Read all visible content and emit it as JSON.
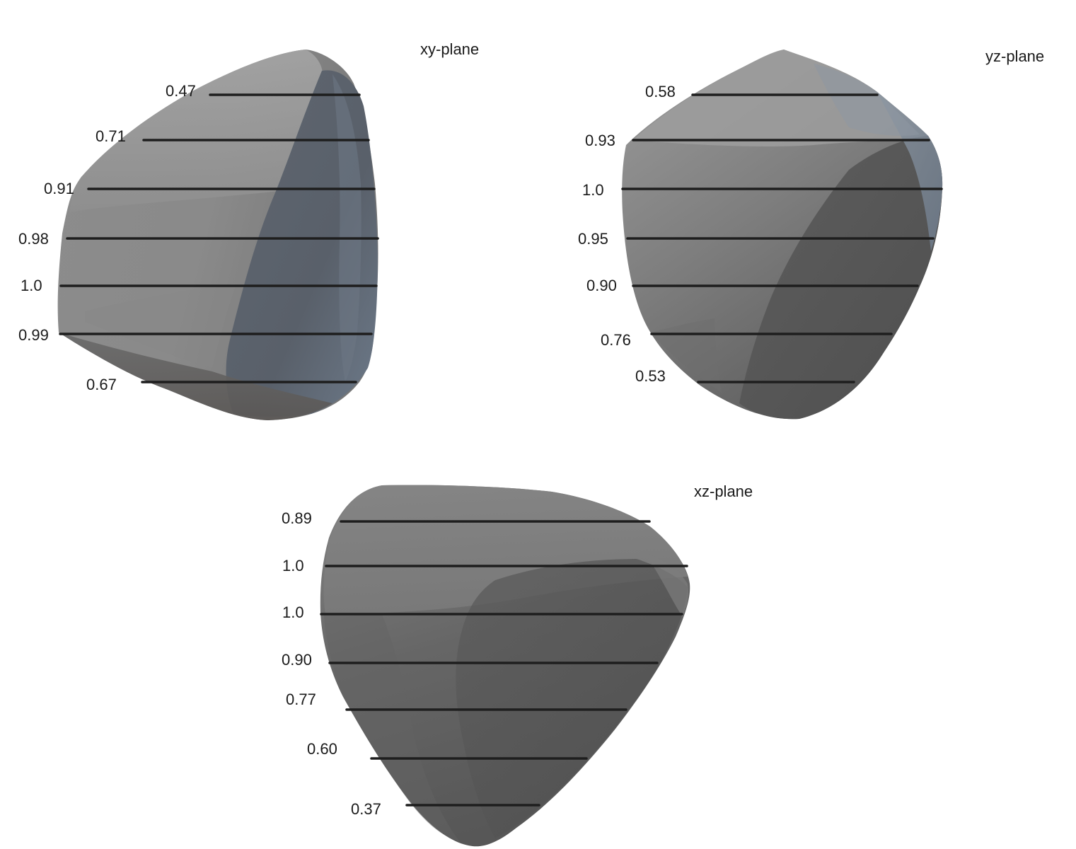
{
  "views": [
    {
      "id": "xy",
      "title": "xy-plane",
      "values": [
        "0.47",
        "0.71",
        "0.91",
        "0.98",
        "1.0",
        "0.99",
        "0.67"
      ]
    },
    {
      "id": "yz",
      "title": "yz-plane",
      "values": [
        "0.58",
        "0.93",
        "1.0",
        "0.95",
        "0.90",
        "0.76",
        "0.53"
      ]
    },
    {
      "id": "xz",
      "title": "xz-plane",
      "values": [
        "0.89",
        "1.0",
        "1.0",
        "0.90",
        "0.77",
        "0.60",
        "0.37"
      ]
    }
  ],
  "colors": {
    "body_light": "#9a9a9a",
    "body_mid": "#7a7a7a",
    "body_dark": "#555555",
    "body_blue": "#6f7c8c",
    "line": "#1e1e1e"
  }
}
